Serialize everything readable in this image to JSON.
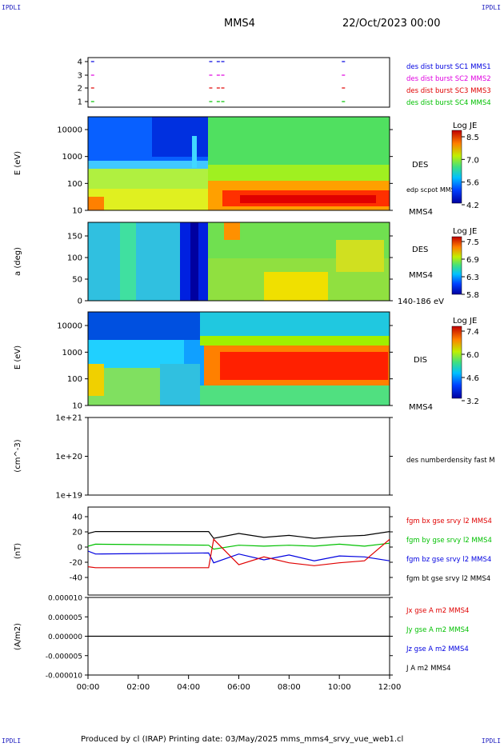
{
  "corners": {
    "tl": "IPDLI",
    "tr": "IPDLI",
    "bl": "IPDLI",
    "br": "IPDLI"
  },
  "header": {
    "spacecraft": "MMS4",
    "date": "22/Oct/2023 00:00"
  },
  "footer": "Produced by cl (IRAP)   Printing date: 03/May/2025   mms_mms4_srvy_vue_web1.cl",
  "colors": {
    "red": "#e00000",
    "green": "#00c000",
    "blue": "#0000e0",
    "magenta": "#e000e0",
    "black": "#000000"
  },
  "chart_data": [
    {
      "type": "scatter",
      "name": "burst-coverage",
      "y_ticks": [
        "1",
        "2",
        "3",
        "4"
      ],
      "legend": [
        {
          "label": "des dist burst SC1 MMS1",
          "color": "#0000e0"
        },
        {
          "label": "des dist burst SC2 MMS2",
          "color": "#e000e0"
        },
        {
          "label": "des dist burst SC3 MMS3",
          "color": "#e00000"
        },
        {
          "label": "des dist burst SC4 MMS4",
          "color": "#00c000"
        }
      ],
      "bursts_hours": [
        0.12,
        4.82,
        5.12,
        5.3,
        10.1
      ]
    },
    {
      "type": "heatmap",
      "name": "des-energy",
      "ylabel": "E (eV)",
      "y_ticks": [
        "10000",
        "1000",
        "100",
        "10"
      ],
      "scale": "log",
      "ylim": [
        10,
        30000
      ],
      "right_labels": [
        "DES",
        "edp scpot MMS4",
        "MMS4"
      ],
      "colorbar": {
        "title": "Log JE",
        "ticks": [
          "8.5",
          "7.0",
          "5.6",
          "4.2"
        ]
      }
    },
    {
      "type": "heatmap",
      "name": "des-pitch-angle",
      "ylabel": "a (deg)",
      "y_ticks": [
        "150",
        "100",
        "50",
        "0"
      ],
      "ylim": [
        0,
        180
      ],
      "right_labels": [
        "DES",
        "MMS4",
        "140-186 eV"
      ],
      "colorbar": {
        "title": "Log JE",
        "ticks": [
          "7.5",
          "6.9",
          "6.3",
          "5.8"
        ]
      }
    },
    {
      "type": "heatmap",
      "name": "dis-energy",
      "ylabel": "E (eV)",
      "y_ticks": [
        "10000",
        "1000",
        "100",
        "10"
      ],
      "scale": "log",
      "ylim": [
        10,
        30000
      ],
      "right_labels": [
        "DIS",
        "MMS4"
      ],
      "colorbar": {
        "title": "Log JE",
        "ticks": [
          "7.4",
          "6.0",
          "4.6",
          "3.2"
        ]
      }
    },
    {
      "type": "line",
      "name": "density",
      "ylabel": "(cm^-3)",
      "y_ticks": [
        "1e+21",
        "1e+20",
        "1e+19"
      ],
      "scale": "log",
      "legend": [
        {
          "label": "des numberdensity fast M",
          "color": "#000000"
        }
      ]
    },
    {
      "type": "line",
      "name": "magnetic-field",
      "ylabel": "(nT)",
      "y_ticks": [
        "40",
        "20",
        "0",
        "-20",
        "-40"
      ],
      "ylim": [
        -45,
        45
      ],
      "legend": [
        {
          "label": "fgm bx gse srvy l2 MMS4",
          "color": "#e00000"
        },
        {
          "label": "fgm by gse srvy l2 MMS4",
          "color": "#00c000"
        },
        {
          "label": "fgm bz gse srvy l2 MMS4",
          "color": "#0000e0"
        },
        {
          "label": "fgm bt gse srvy l2 MMS4",
          "color": "#000000"
        }
      ],
      "series": [
        {
          "name": "bt",
          "x": [
            0,
            0.3,
            4.8,
            5.0,
            6,
            7,
            8,
            9,
            10,
            11,
            12
          ],
          "values": [
            18,
            20,
            20,
            13,
            18,
            14,
            16,
            13,
            15,
            16,
            20
          ]
        },
        {
          "name": "by",
          "x": [
            0,
            0.3,
            4.8,
            5.0,
            6,
            7,
            8,
            9,
            10,
            11,
            12
          ],
          "values": [
            5,
            7,
            6,
            2,
            6,
            5,
            6,
            5,
            7,
            5,
            8
          ]
        },
        {
          "name": "bz",
          "x": [
            0,
            0.3,
            4.8,
            5.0,
            6,
            7,
            8,
            9,
            10,
            11,
            12
          ],
          "values": [
            0,
            -3,
            -2,
            -12,
            -3,
            -9,
            -4,
            -10,
            -5,
            -6,
            -10
          ]
        },
        {
          "name": "bx",
          "x": [
            0,
            0.3,
            4.8,
            5.0,
            6,
            7,
            8,
            9,
            10,
            11,
            12
          ],
          "values": [
            -16,
            -17,
            -17,
            12,
            -14,
            -6,
            -12,
            -15,
            -12,
            -10,
            12
          ]
        }
      ]
    },
    {
      "type": "line",
      "name": "current-density",
      "ylabel": "(A/m2)",
      "y_ticks": [
        "0.000010",
        "0.000005",
        "0.000000",
        "-0.000005",
        "-0.000010"
      ],
      "ylim": [
        -1e-05,
        1e-05
      ],
      "x_ticks": [
        "00:00",
        "02:00",
        "04:00",
        "06:00",
        "08:00",
        "10:00",
        "12:00"
      ],
      "xlim": [
        0,
        12
      ],
      "legend": [
        {
          "label": "Jx gse A m2 MMS4",
          "color": "#e00000"
        },
        {
          "label": "Jy gse A m2 MMS4",
          "color": "#00c000"
        },
        {
          "label": "Jz gse A m2 MMS4",
          "color": "#0000e0"
        },
        {
          "label": "J A m2 MMS4",
          "color": "#000000"
        }
      ],
      "series": [
        {
          "name": "J",
          "x": [
            0,
            12
          ],
          "values": [
            0,
            0
          ]
        }
      ]
    }
  ]
}
